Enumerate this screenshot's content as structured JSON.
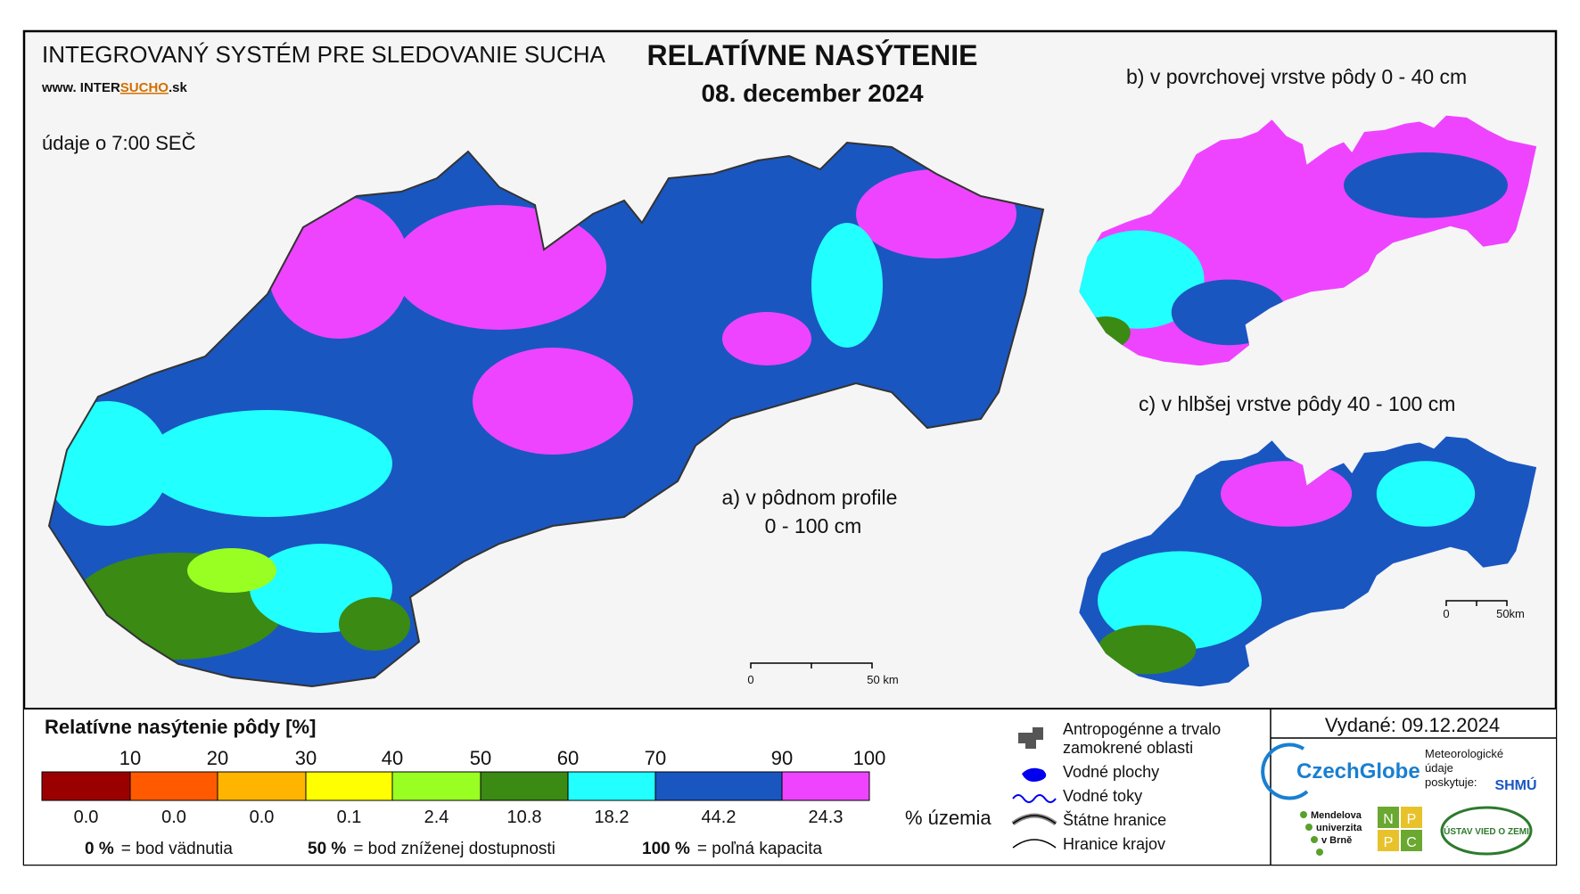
{
  "header": {
    "system": "INTEGROVANÝ SYSTÉM PRE SLEDOVANIE SUCHA",
    "site_prefix": "www. INTER",
    "site_highlight": "SUCHO",
    "site_suffix": ".sk",
    "time": "údaje o 7:00 SEČ",
    "title": "RELATÍVNE NASÝTENIE",
    "date": "08. december 2024"
  },
  "maps": {
    "a_line1": "a) v pôdnom profile",
    "a_line2": "0 - 100 cm",
    "b": "b) v povrchovej vrstve pôdy 0 - 40 cm",
    "c": "c) v hlbšej vrstve pôdy 40 - 100 cm",
    "scale_zero": "0",
    "scale_main": "50 km",
    "scale_small": "50km"
  },
  "legend": {
    "title": "Relatívne nasýtenie pôdy [%]",
    "bounds": [
      "10",
      "20",
      "30",
      "40",
      "50",
      "60",
      "70",
      "90",
      "100"
    ],
    "colors": [
      "#9b0000",
      "#ff5a00",
      "#ffb400",
      "#ffff00",
      "#99ff22",
      "#3a8a14",
      "#22ffff",
      "#1a56c0",
      "#ee44ff"
    ],
    "shares": [
      "0.0",
      "0.0",
      "0.0",
      "0.1",
      "2.4",
      "10.8",
      "18.2",
      "44.2",
      "24.3"
    ],
    "shares_unit": "% územia",
    "notes": [
      {
        "key": "0 %",
        "text": "= bod vädnutia"
      },
      {
        "key": "50 %",
        "text": "= bod zníženej dostupnosti"
      },
      {
        "key": "100 %",
        "text": "= poľná kapacita"
      }
    ]
  },
  "symbols": [
    "Antropogénne a trvalo",
    "zamokrené oblasti",
    "Vodné plochy",
    "Vodné toky",
    "Štátne hranice",
    "Hranice krajov"
  ],
  "footer": {
    "issued": "Vydané: 09.12.2024",
    "czechglobe": "CzechGlobe",
    "meteo": [
      "Meteorologické",
      "údaje",
      "poskytuje:"
    ],
    "shmu": "SHMÚ",
    "mendel": [
      "Mendelova",
      "univerzita",
      "v Brně"
    ],
    "nppc": [
      "N",
      "P",
      "P",
      "C"
    ],
    "uvz": "ÚSTAV VIED O ZEMI"
  }
}
